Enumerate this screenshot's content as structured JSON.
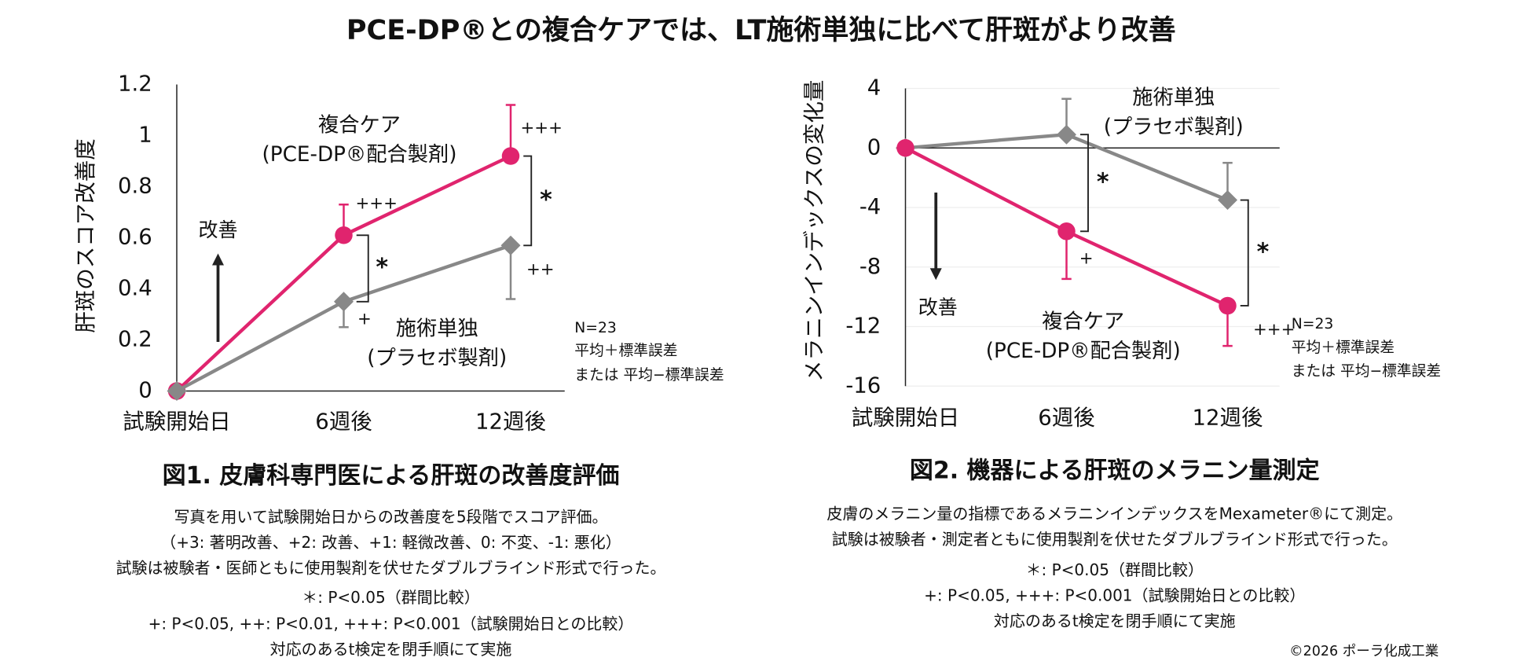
{
  "title": "PCE-DP®との複合ケアでは、LT施術単独に比べて肝斑がより改善",
  "copyright": "©2026 ポーラ化成工業",
  "chart_data": [
    {
      "type": "line",
      "ylabel": "肝斑のスコア改善度",
      "categories": [
        "試験開始日",
        "6週後",
        "12週後"
      ],
      "ylim": [
        0,
        1.2
      ],
      "yticks": [
        0,
        0.2,
        0.4,
        0.6,
        0.8,
        1,
        1.2
      ],
      "grid": false,
      "series": [
        {
          "name": "複合ケア",
          "sublabel": "(PCE-DP®配合製剤)",
          "color": "#e0246e",
          "marker": "circle",
          "values": [
            0,
            0.61,
            0.92
          ],
          "errors": [
            null,
            0.12,
            0.2
          ],
          "error_dir": "up",
          "sig_labels": [
            null,
            "+++",
            "+++"
          ]
        },
        {
          "name": "施術単独",
          "sublabel": "(プラセボ製剤)",
          "color": "#888888",
          "marker": "diamond",
          "values": [
            0,
            0.35,
            0.57
          ],
          "errors": [
            null,
            0.1,
            0.21
          ],
          "error_dir": "down",
          "sig_labels": [
            null,
            "+",
            "++"
          ]
        }
      ],
      "significance": [
        "*",
        "*"
      ],
      "improve_label": "改善",
      "notes": [
        "N=23",
        "平均＋標準誤差",
        "または 平均−標準誤差"
      ],
      "caption_title": "図1. 皮膚科専門医による肝斑の改善度評価",
      "caption_lines": [
        "写真を用いて試験開始日からの改善度を5段階でスコア評価。",
        "（+3: 著明改善、+2: 改善、+1: 軽微改善、0: 不変、-1: 悪化）",
        "試験は被験者・医師ともに使用製剤を伏せたダブルブラインド形式で行った。",
        "＊: P<0.05（群間比較）",
        "+: P<0.05, ++: P<0.01, +++: P<0.001（試験開始日との比較）",
        "対応のあるt検定を閉手順にて実施"
      ]
    },
    {
      "type": "line",
      "ylabel": "メラニンインデックスの変化量",
      "categories": [
        "試験開始日",
        "6週後",
        "12週後"
      ],
      "ylim": [
        -16,
        4
      ],
      "yticks": [
        4,
        0,
        -4,
        -8,
        -12,
        -16
      ],
      "grid": true,
      "series": [
        {
          "name": "施術単独",
          "sublabel": "(プラセボ製剤)",
          "color": "#888888",
          "marker": "diamond",
          "values": [
            0,
            0.9,
            -3.5
          ],
          "errors": [
            null,
            2.4,
            2.5
          ],
          "error_dir": "up",
          "sig_labels": [
            null,
            null,
            null
          ]
        },
        {
          "name": "複合ケア",
          "sublabel": "(PCE-DP®配合製剤)",
          "color": "#e0246e",
          "marker": "circle",
          "values": [
            0,
            -5.6,
            -10.6
          ],
          "errors": [
            null,
            3.2,
            2.7
          ],
          "error_dir": "down",
          "sig_labels": [
            null,
            "+",
            "+++"
          ]
        }
      ],
      "significance": [
        "*",
        "*"
      ],
      "improve_label": "改善",
      "notes": [
        "N=23",
        "平均＋標準誤差",
        "または 平均−標準誤差"
      ],
      "caption_title": "図2. 機器による肝斑のメラニン量測定",
      "caption_lines": [
        "皮膚のメラニン量の指標であるメラニンインデックスをMexameter®にて測定。",
        "試験は被験者・測定者ともに使用製剤を伏せたダブルブラインド形式で行った。",
        "＊: P<0.05（群間比較）",
        "+: P<0.05, +++: P<0.001（試験開始日との比較）",
        "対応のあるt検定を閉手順にて実施"
      ]
    }
  ]
}
